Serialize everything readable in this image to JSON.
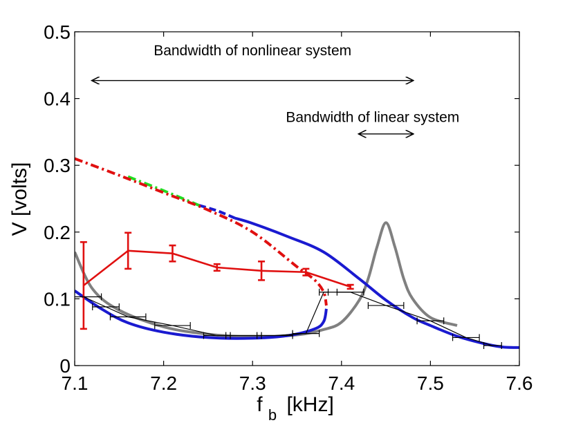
{
  "chart_data": {
    "type": "line",
    "title": "",
    "xlabel_main": "f",
    "xlabel_sub": "b",
    "xlabel_unit": "[kHz]",
    "ylabel": "V [volts]",
    "xlim": [
      7.1,
      7.6
    ],
    "ylim": [
      0,
      0.5
    ],
    "xticks": [
      7.1,
      7.2,
      7.3,
      7.4,
      7.5,
      7.6
    ],
    "xtick_labels": [
      "7.1",
      "7.2",
      "7.3",
      "7.4",
      "7.5",
      "7.6"
    ],
    "yticks": [
      0,
      0.1,
      0.2,
      0.3,
      0.4,
      0.5
    ],
    "ytick_labels": [
      "0",
      "0.1",
      "0.2",
      "0.3",
      "0.4",
      "0.5"
    ],
    "grid": false,
    "annotations": [
      {
        "text": "Bandwidth of nonlinear system",
        "x_text": 7.3,
        "y_text": 0.465,
        "arrow_from": 7.12,
        "arrow_to": 7.48,
        "arrow_y": 0.427
      },
      {
        "text": "Bandwidth of linear system",
        "x_text": 7.435,
        "y_text": 0.365,
        "arrow_from": 7.42,
        "arrow_to": 7.48,
        "arrow_y": 0.347
      }
    ],
    "series": [
      {
        "name": "linear response (gray)",
        "color": "#808080",
        "style": "solid",
        "x": [
          7.1,
          7.12,
          7.15,
          7.2,
          7.25,
          7.3,
          7.35,
          7.38,
          7.4,
          7.42,
          7.43,
          7.44,
          7.45,
          7.46,
          7.47,
          7.48,
          7.5,
          7.53
        ],
        "y": [
          0.17,
          0.115,
          0.083,
          0.058,
          0.047,
          0.043,
          0.046,
          0.054,
          0.065,
          0.098,
          0.13,
          0.178,
          0.214,
          0.178,
          0.13,
          0.1,
          0.072,
          0.06
        ]
      },
      {
        "name": "nonlinear upper branch stable (blue)",
        "color": "#1a1ad0",
        "style": "solid",
        "x": [
          7.28,
          7.3,
          7.34,
          7.38,
          7.42,
          7.45,
          7.48,
          7.5,
          7.53,
          7.56,
          7.58,
          7.6
        ],
        "y": [
          0.221,
          0.213,
          0.193,
          0.17,
          0.13,
          0.098,
          0.072,
          0.06,
          0.044,
          0.033,
          0.028,
          0.027
        ]
      },
      {
        "name": "nonlinear upper branch (blue dashed segment)",
        "color": "#1a1ad0",
        "style": "dashed",
        "x": [
          7.24,
          7.26,
          7.28
        ],
        "y": [
          0.24,
          0.232,
          0.221
        ]
      },
      {
        "name": "nonlinear upper branch (green dash-dot)",
        "color": "#22dd22",
        "style": "dashdot",
        "x": [
          7.16,
          7.2,
          7.24
        ],
        "y": [
          0.283,
          0.262,
          0.24
        ]
      },
      {
        "name": "nonlinear lower branch stable (blue)",
        "color": "#1a1ad0",
        "style": "solid",
        "x": [
          7.1,
          7.13,
          7.16,
          7.2,
          7.25,
          7.3,
          7.34,
          7.37,
          7.38,
          7.383
        ],
        "y": [
          0.112,
          0.085,
          0.064,
          0.05,
          0.042,
          0.041,
          0.045,
          0.055,
          0.066,
          0.085
        ]
      },
      {
        "name": "nonlinear unstable branch (red dash-dot)",
        "color": "#e01010",
        "style": "dashdot",
        "x": [
          7.1,
          7.15,
          7.2,
          7.25,
          7.3,
          7.35,
          7.37,
          7.38,
          7.383
        ],
        "y": [
          0.31,
          0.285,
          0.259,
          0.233,
          0.2,
          0.148,
          0.128,
          0.11,
          0.09
        ]
      },
      {
        "name": "experiment upper (red, with error bars)",
        "color": "#e01010",
        "style": "solid",
        "x": [
          7.11,
          7.16,
          7.21,
          7.26,
          7.31,
          7.36,
          7.41
        ],
        "y": [
          0.12,
          0.172,
          0.168,
          0.147,
          0.142,
          0.14,
          0.118
        ],
        "err": [
          0.065,
          0.027,
          0.012,
          0.005,
          0.014,
          0.005,
          0.003
        ]
      },
      {
        "name": "experiment sweep (black, with horizontal error bars)",
        "color": "#000000",
        "style": "solid",
        "x": [
          7.11,
          7.135,
          7.16,
          7.21,
          7.26,
          7.29,
          7.325,
          7.36,
          7.38,
          7.41,
          7.45,
          7.5,
          7.54,
          7.57
        ],
        "y": [
          0.103,
          0.088,
          0.073,
          0.06,
          0.045,
          0.045,
          0.045,
          0.048,
          0.11,
          0.11,
          0.09,
          0.067,
          0.042,
          0.03
        ],
        "xerr": [
          0.02,
          0.015,
          0.02,
          0.02,
          0.015,
          0.02,
          0.02,
          0.015,
          0.005,
          0.015,
          0.02,
          0.015,
          0.015,
          0.01
        ]
      }
    ]
  }
}
